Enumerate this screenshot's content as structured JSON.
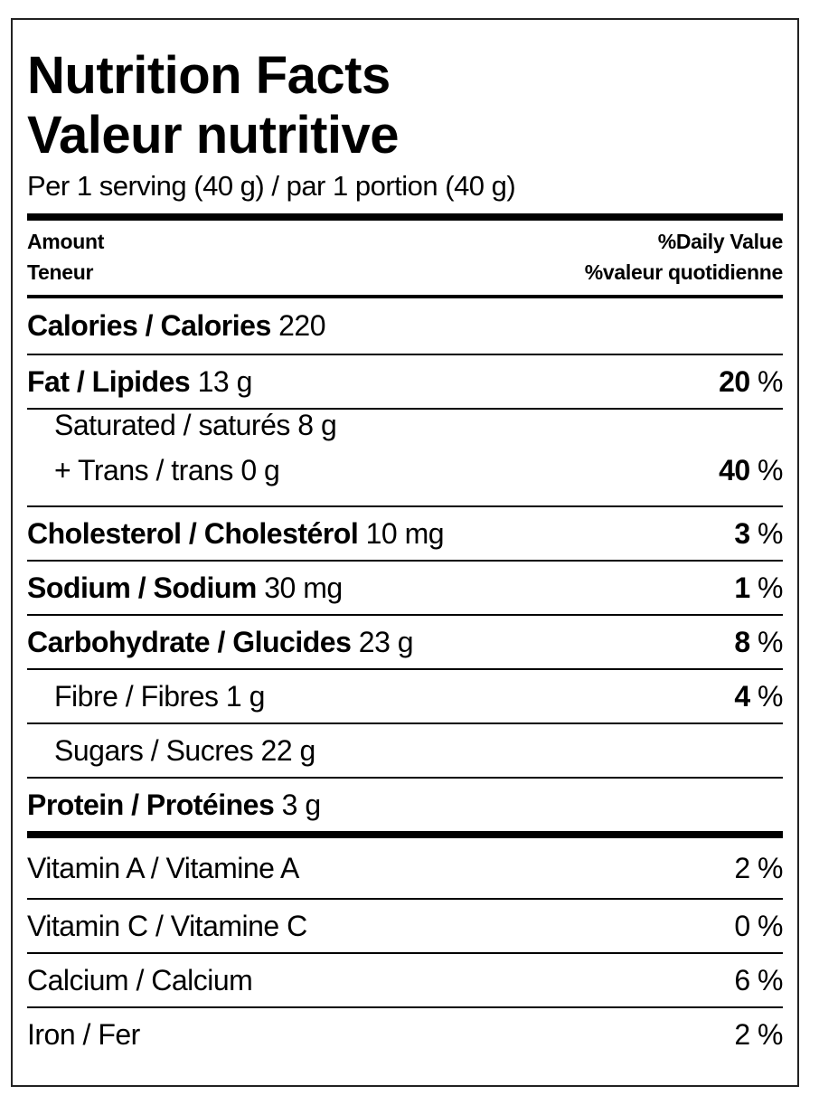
{
  "title_en": "Nutrition Facts",
  "title_fr": "Valeur nutritive",
  "serving": "Per 1 serving (40 g) / par 1 portion (40 g)",
  "header": {
    "amount_en": "Amount",
    "amount_fr": "Teneur",
    "dv_en": "%Daily Value",
    "dv_fr": "%valeur quotidienne"
  },
  "calories": {
    "label": "Calories / Calories",
    "value": "220"
  },
  "fat": {
    "label": "Fat / Lipides",
    "amount": "13 g",
    "dv": "20",
    "unit": "%"
  },
  "saturated": {
    "label": "Saturated / saturés 8 g",
    "trans": "+ Trans / trans 0 g",
    "dv": "40",
    "unit": "%"
  },
  "cholesterol": {
    "label": "Cholesterol / Cholestérol",
    "amount": "10 mg",
    "dv": "3",
    "unit": "%"
  },
  "sodium": {
    "label": "Sodium / Sodium",
    "amount": "30 mg",
    "dv": "1",
    "unit": "%"
  },
  "carbohydrate": {
    "label": "Carbohydrate / Glucides",
    "amount": "23 g",
    "dv": "8",
    "unit": "%"
  },
  "fibre": {
    "label": "Fibre / Fibres 1 g",
    "dv": "4",
    "unit": "%"
  },
  "sugars": {
    "label": "Sugars / Sucres 22 g"
  },
  "protein": {
    "label": "Protein / Protéines",
    "amount": "3 g"
  },
  "vitamins": [
    {
      "label": "Vitamin A / Vitamine A",
      "dv": "2 %"
    },
    {
      "label": "Vitamin C / Vitamine C",
      "dv": "0 %"
    },
    {
      "label": "Calcium / Calcium",
      "dv": "6 %"
    },
    {
      "label": "Iron / Fer",
      "dv": "2 %"
    }
  ]
}
